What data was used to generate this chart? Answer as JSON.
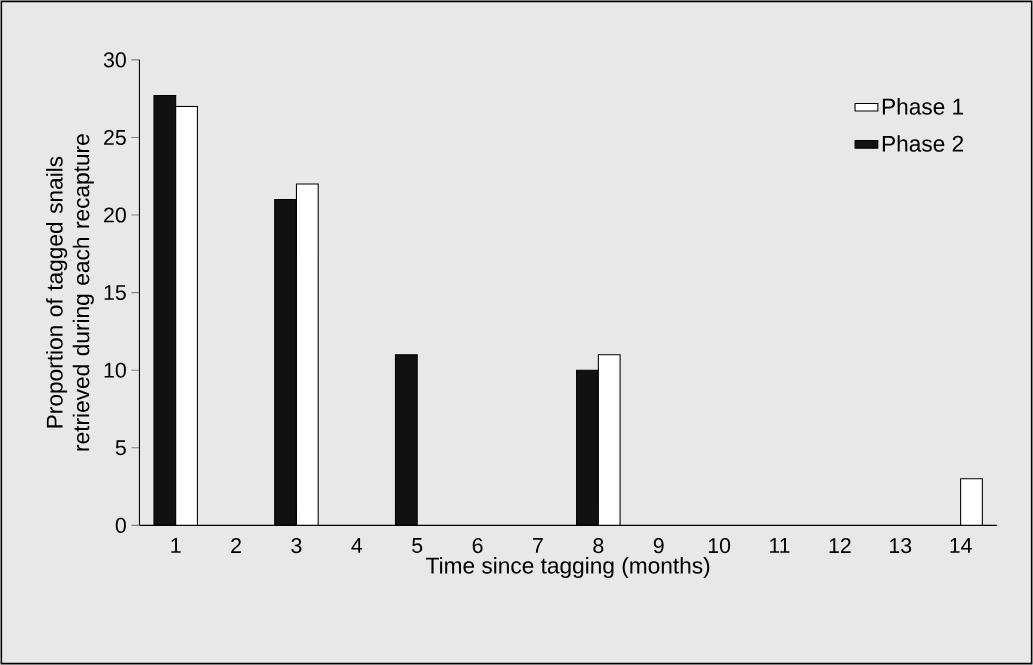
{
  "chart_data": {
    "type": "bar",
    "xlabel": "Time since tagging (months)",
    "ylabel": "Proportion of tagged snails retrieved during each recapture",
    "categories": [
      "1",
      "2",
      "3",
      "4",
      "5",
      "6",
      "7",
      "8",
      "9",
      "10",
      "11",
      "12",
      "13",
      "14"
    ],
    "series": [
      {
        "name": "Phase 2",
        "color": "#111111",
        "values": [
          27.7,
          null,
          21,
          null,
          11,
          null,
          null,
          10,
          null,
          null,
          null,
          null,
          null,
          null
        ]
      },
      {
        "name": "Phase 1",
        "color": "#ffffff",
        "values": [
          27,
          null,
          22,
          null,
          null,
          null,
          null,
          11,
          null,
          null,
          null,
          null,
          null,
          3
        ]
      }
    ],
    "ylim": [
      0,
      30
    ],
    "yticks": [
      0,
      5,
      10,
      15,
      20,
      25,
      30
    ],
    "grid": false,
    "legend": "top right"
  }
}
